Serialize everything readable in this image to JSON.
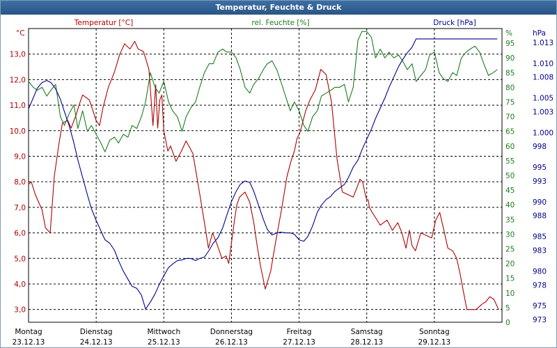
{
  "title": "Temperatur, Feuchte & Druck",
  "colors": {
    "temperature": "#b00000",
    "humidity": "#1e7b1e",
    "pressure": "#00008b",
    "grid": "#000000",
    "titlebar": "#2f5e8f",
    "border": "#7f9db9"
  },
  "chart_data": {
    "type": "line",
    "grid": true,
    "axes": {
      "temperature": {
        "label": "Temperatur [°C]",
        "unit": "°C",
        "range": [
          2.5,
          14.0
        ],
        "ticks": [
          "3,0",
          "4,0",
          "5,0",
          "6,0",
          "7,0",
          "8,0",
          "9,0",
          "10,0",
          "11,0",
          "12,0",
          "13,0"
        ]
      },
      "humidity": {
        "label": "rel. Feuchte [%]",
        "unit": "%",
        "range": [
          0,
          100
        ],
        "ticks": [
          "0",
          "5",
          "10",
          "15",
          "20",
          "25",
          "30",
          "35",
          "40",
          "45",
          "50",
          "55",
          "60",
          "65",
          "70",
          "75",
          "80",
          "85",
          "90",
          "95"
        ]
      },
      "pressure": {
        "label": "Druck [hPa]",
        "unit": "hPa",
        "range": [
          972.6,
          1015.0
        ],
        "ticks": [
          "973",
          "975",
          "978",
          "980",
          "983",
          "985",
          "988",
          "990",
          "993",
          "995",
          "998",
          "1.000",
          "1.003",
          "1.005",
          "1.008",
          "1.010",
          "1.013"
        ]
      }
    },
    "x_categories": [
      {
        "day": "Montag",
        "date": "23.12.13"
      },
      {
        "day": "Dienstag",
        "date": "24.12.13"
      },
      {
        "day": "Mittwoch",
        "date": "25.12.13"
      },
      {
        "day": "Donnerstag",
        "date": "26.12.13"
      },
      {
        "day": "Freitag",
        "date": "27.12.13"
      },
      {
        "day": "Samstag",
        "date": "28.12.13"
      },
      {
        "day": "Sonntag",
        "date": "29.12.13"
      }
    ],
    "series": [
      {
        "name": "Temperatur [°C]",
        "axis": "temperature",
        "x": [
          0,
          0.04,
          0.1,
          0.2,
          0.25,
          0.32,
          0.38,
          0.45,
          0.5,
          0.58,
          0.63,
          0.7,
          0.76,
          0.8,
          0.9,
          1.0,
          1.05,
          1.1,
          1.18,
          1.27,
          1.35,
          1.42,
          1.5,
          1.57,
          1.62,
          1.7,
          1.78,
          1.84,
          1.88,
          1.91,
          1.94,
          1.97,
          2.0,
          2.03,
          2.06,
          2.1,
          2.18,
          2.26,
          2.33,
          2.43,
          2.52,
          2.6,
          2.66,
          2.72,
          2.78,
          2.86,
          2.92,
          2.96,
          3.0,
          3.04,
          3.08,
          3.12,
          3.2,
          3.27,
          3.33,
          3.38,
          3.43,
          3.5,
          3.58,
          3.65,
          3.74,
          3.82,
          3.88,
          3.93,
          3.97,
          4.01,
          4.05,
          4.1,
          4.16,
          4.24,
          4.32,
          4.4,
          4.48,
          4.56,
          4.64,
          4.72,
          4.8,
          4.86,
          4.9,
          4.94,
          4.97,
          5.0,
          5.02,
          5.04,
          5.08,
          5.13,
          5.2,
          5.3,
          5.38,
          5.46,
          5.52,
          5.58,
          5.63,
          5.67,
          5.72,
          5.8,
          5.88,
          5.96,
          6.02,
          6.08,
          6.14,
          6.2,
          6.27,
          6.33,
          6.38,
          6.43,
          6.48,
          6.55,
          6.62,
          6.7,
          6.76,
          6.82,
          6.88,
          6.95
        ],
        "y": [
          7.9,
          8.0,
          7.5,
          6.9,
          6.2,
          6.0,
          8.2,
          9.5,
          10.3,
          10.4,
          10.1,
          10.6,
          11.1,
          11.4,
          11.2,
          10.4,
          10.2,
          10.9,
          11.7,
          12.3,
          13.0,
          13.4,
          13.2,
          13.5,
          13.2,
          13.1,
          12.4,
          10.2,
          11.8,
          10.1,
          11.2,
          11.4,
          10.0,
          9.6,
          9.2,
          9.4,
          8.8,
          9.2,
          9.6,
          9.1,
          7.7,
          6.4,
          5.4,
          6.0,
          5.6,
          5.0,
          5.1,
          4.8,
          5.6,
          6.4,
          7.1,
          7.4,
          7.6,
          7.2,
          6.4,
          5.5,
          4.7,
          3.8,
          4.5,
          5.6,
          6.9,
          8.2,
          8.8,
          9.2,
          9.7,
          9.9,
          10.3,
          10.8,
          11.2,
          11.6,
          12.4,
          12.2,
          11.1,
          8.9,
          7.6,
          7.5,
          7.4,
          7.8,
          8.1,
          8.0,
          7.6,
          7.3,
          7.3,
          7.0,
          6.8,
          6.6,
          6.3,
          6.5,
          6.1,
          6.4,
          6.0,
          5.4,
          6.1,
          5.5,
          5.3,
          6.0,
          5.9,
          5.8,
          6.5,
          6.8,
          6.1,
          5.4,
          5.3,
          5.0,
          4.4,
          3.7,
          3.0,
          3.0,
          3.0,
          3.2,
          3.3,
          3.5,
          3.4,
          3.0
        ]
      },
      {
        "name": "rel. Feuchte [%]",
        "axis": "humidity",
        "x": [
          0,
          0.07,
          0.13,
          0.2,
          0.27,
          0.33,
          0.4,
          0.47,
          0.53,
          0.6,
          0.67,
          0.73,
          0.8,
          0.87,
          0.93,
          1.0,
          1.07,
          1.13,
          1.2,
          1.27,
          1.33,
          1.4,
          1.47,
          1.53,
          1.6,
          1.67,
          1.73,
          1.8,
          1.87,
          1.93,
          2.0,
          2.07,
          2.13,
          2.2,
          2.27,
          2.33,
          2.4,
          2.47,
          2.53,
          2.6,
          2.67,
          2.73,
          2.8,
          2.87,
          2.93,
          3.0,
          3.07,
          3.13,
          3.2,
          3.27,
          3.33,
          3.4,
          3.47,
          3.53,
          3.6,
          3.67,
          3.73,
          3.8,
          3.87,
          3.93,
          4.0,
          4.07,
          4.13,
          4.2,
          4.27,
          4.33,
          4.4,
          4.47,
          4.53,
          4.6,
          4.67,
          4.73,
          4.8,
          4.87,
          4.93,
          5.0,
          5.07,
          5.13,
          5.2,
          5.27,
          5.33,
          5.4,
          5.47,
          5.53,
          5.6,
          5.67,
          5.73,
          5.8,
          5.87,
          5.93,
          6.0,
          6.07,
          6.13,
          6.2,
          6.27,
          6.33,
          6.4,
          6.47,
          6.53,
          6.6,
          6.67,
          6.73,
          6.8,
          6.87,
          6.93
        ],
        "y": [
          82,
          80,
          79,
          80,
          77,
          79,
          81,
          70,
          67,
          71,
          74,
          66,
          72,
          65,
          67,
          64,
          61,
          58,
          62,
          63,
          61,
          64,
          63,
          67,
          66,
          70,
          75,
          85,
          80,
          78,
          82,
          75,
          72,
          70,
          65,
          70,
          73,
          75,
          80,
          85,
          88,
          88,
          92,
          93,
          92,
          92,
          90,
          86,
          80,
          78,
          81,
          83,
          86,
          88,
          89,
          86,
          82,
          77,
          72,
          75,
          72,
          67,
          65,
          70,
          72,
          77,
          78,
          79,
          80,
          80,
          81,
          75,
          80,
          96,
          99,
          99,
          97,
          90,
          93,
          90,
          92,
          90,
          91,
          89,
          86,
          88,
          82,
          84,
          86,
          91,
          92,
          85,
          83,
          82,
          85,
          84,
          90,
          92,
          93,
          94,
          92,
          88,
          84,
          85,
          86
        ]
      },
      {
        "name": "Druck [hPa]",
        "axis": "pressure",
        "x": [
          0,
          0.07,
          0.13,
          0.2,
          0.27,
          0.33,
          0.4,
          0.47,
          0.53,
          0.6,
          0.67,
          0.73,
          0.8,
          0.87,
          0.93,
          1.0,
          1.07,
          1.13,
          1.2,
          1.27,
          1.33,
          1.4,
          1.47,
          1.53,
          1.6,
          1.67,
          1.73,
          1.8,
          1.87,
          1.93,
          2.0,
          2.07,
          2.13,
          2.2,
          2.27,
          2.33,
          2.4,
          2.47,
          2.53,
          2.6,
          2.67,
          2.73,
          2.8,
          2.87,
          2.93,
          3.0,
          3.07,
          3.13,
          3.2,
          3.27,
          3.33,
          3.4,
          3.47,
          3.53,
          3.6,
          3.67,
          3.73,
          3.8,
          3.87,
          3.93,
          4.0,
          4.07,
          4.13,
          4.2,
          4.27,
          4.33,
          4.4,
          4.47,
          4.53,
          4.6,
          4.67,
          4.73,
          4.8,
          4.87,
          4.93,
          5.0,
          5.07,
          5.13,
          5.2,
          5.27,
          5.33,
          5.4,
          5.47,
          5.53,
          5.6,
          5.67,
          5.73,
          5.8,
          5.87,
          5.93,
          6.0,
          6.07,
          6.13,
          6.2,
          6.27,
          6.33,
          6.4,
          6.47,
          6.53,
          6.6,
          6.67,
          6.73,
          6.8,
          6.87,
          6.93
        ],
        "y": [
          1003.4,
          1005.0,
          1006.4,
          1007.2,
          1007.5,
          1007.2,
          1006.3,
          1004.8,
          1003.0,
          1001.0,
          998.5,
          996.0,
          993.5,
          991.0,
          989.0,
          987.3,
          985.8,
          984.5,
          984.0,
          983.0,
          981.5,
          980.0,
          978.8,
          977.8,
          977.5,
          976.5,
          974.5,
          975.5,
          976.7,
          978.0,
          979.3,
          980.5,
          981.0,
          981.5,
          981.6,
          981.8,
          981.8,
          981.5,
          981.8,
          982.0,
          983.0,
          984.0,
          984.8,
          986.2,
          988.0,
          990.0,
          991.5,
          992.5,
          993.0,
          992.8,
          991.5,
          989.5,
          987.5,
          986.0,
          985.2,
          985.5,
          985.6,
          985.5,
          985.5,
          985.3,
          984.5,
          984.3,
          985.0,
          986.5,
          988.5,
          989.5,
          990.3,
          990.8,
          991.5,
          992.0,
          992.5,
          993.5,
          995.0,
          996.0,
          997.5,
          999.0,
          1000.5,
          1002.0,
          1003.5,
          1005.0,
          1006.5,
          1008.0,
          1009.5,
          1010.5,
          1011.5,
          1012.3,
          1013.5,
          1013.5,
          1013.5,
          1013.5,
          1013.5,
          1013.5,
          1013.5,
          1013.5,
          1013.5,
          1013.5,
          1013.5,
          1013.5,
          1013.5,
          1013.5,
          1013.5,
          1013.5,
          1013.5,
          1013.5,
          1013.5
        ]
      }
    ]
  }
}
